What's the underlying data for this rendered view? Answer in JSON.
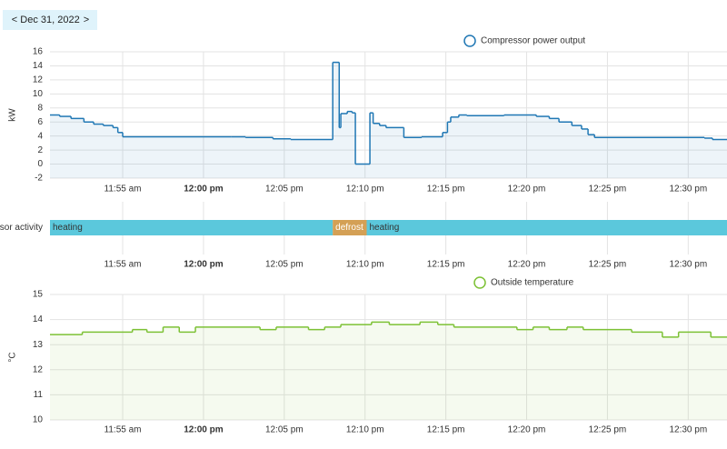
{
  "nav": {
    "prev": "<",
    "date": "Dec 31, 2022",
    "next": ">"
  },
  "chart_data": [
    {
      "type": "step-line",
      "y_label": "kW",
      "series": [
        {
          "name": "Compressor power output",
          "color": "#1f77b4",
          "x": [
            710.5,
            711.1,
            711.8,
            712.6,
            713.2,
            713.8,
            714.4,
            714.7,
            715.0,
            721.7,
            722.6,
            724.3,
            725.4,
            728.0,
            728.4,
            728.5,
            728.9,
            729.2,
            729.4,
            730.3,
            730.5,
            730.9,
            731.3,
            732.4,
            733.5,
            734.8,
            735.1,
            735.3,
            735.8,
            736.3,
            738.6,
            740.6,
            741.4,
            742.0,
            742.8,
            743.4,
            743.8,
            744.2,
            751.0,
            751.5
          ],
          "values": [
            7.0,
            6.8,
            6.5,
            6.0,
            5.7,
            5.5,
            5.2,
            4.5,
            3.9,
            3.9,
            3.8,
            3.6,
            3.5,
            14.5,
            5.2,
            7.2,
            7.5,
            7.3,
            0,
            7.3,
            5.8,
            5.5,
            5.2,
            3.8,
            3.9,
            4.5,
            6.0,
            6.7,
            7.0,
            6.9,
            7.0,
            6.8,
            6.5,
            6.0,
            5.5,
            5.0,
            4.2,
            3.8,
            3.7,
            3.5
          ]
        }
      ],
      "xlim": [
        710.5,
        752.4
      ],
      "xticks": [
        {
          "value": 715,
          "label": "11:55 am"
        },
        {
          "value": 720,
          "label": "12:00 pm"
        },
        {
          "value": 725,
          "label": "12:05 pm"
        },
        {
          "value": 730,
          "label": "12:10 pm"
        },
        {
          "value": 735,
          "label": "12:15 pm"
        },
        {
          "value": 740,
          "label": "12:20 pm"
        },
        {
          "value": 745,
          "label": "12:25 pm"
        },
        {
          "value": 750,
          "label": "12:30 pm"
        }
      ],
      "ylim": [
        -2,
        16
      ],
      "yticks": [
        -2,
        0,
        2,
        4,
        6,
        8,
        10,
        12,
        14,
        16
      ],
      "grid": true
    },
    {
      "type": "timeline",
      "row_label": "Compressor activity",
      "segments": [
        {
          "label": "heating",
          "start": 710.5,
          "end": 728.0,
          "color": "#5bc8dc"
        },
        {
          "label": "defrost",
          "start": 728.0,
          "end": 730.1,
          "color": "#d4a055"
        },
        {
          "label": "heating",
          "start": 730.1,
          "end": 752.4,
          "color": "#5bc8dc"
        }
      ],
      "xlim": [
        710.5,
        752.4
      ],
      "xticks": [
        {
          "value": 715,
          "label": "11:55 am"
        },
        {
          "value": 720,
          "label": "12:00 pm"
        },
        {
          "value": 725,
          "label": "12:05 pm"
        },
        {
          "value": 730,
          "label": "12:10 pm"
        },
        {
          "value": 735,
          "label": "12:15 pm"
        },
        {
          "value": 740,
          "label": "12:20 pm"
        },
        {
          "value": 745,
          "label": "12:25 pm"
        },
        {
          "value": 750,
          "label": "12:30 pm"
        }
      ],
      "grid": true
    },
    {
      "type": "step-line",
      "y_label": "°C",
      "series": [
        {
          "name": "Outside temperature",
          "color": "#7cc134",
          "x": [
            710.5,
            712.5,
            715.6,
            716.5,
            717.5,
            718.5,
            719.5,
            723.5,
            724.5,
            726.5,
            727.5,
            728.5,
            730.4,
            731.5,
            733.4,
            734.5,
            735.5,
            739.4,
            740.4,
            741.4,
            742.5,
            743.5,
            746.5,
            748.4,
            749.4,
            751.4
          ],
          "values": [
            13.4,
            13.5,
            13.6,
            13.5,
            13.7,
            13.5,
            13.7,
            13.6,
            13.7,
            13.6,
            13.7,
            13.8,
            13.9,
            13.8,
            13.9,
            13.8,
            13.7,
            13.6,
            13.7,
            13.6,
            13.7,
            13.6,
            13.5,
            13.3,
            13.5,
            13.3
          ]
        }
      ],
      "xlim": [
        710.5,
        752.4
      ],
      "xticks": [
        {
          "value": 715,
          "label": "11:55 am"
        },
        {
          "value": 720,
          "label": "12:00 pm"
        },
        {
          "value": 725,
          "label": "12:05 pm"
        },
        {
          "value": 730,
          "label": "12:10 pm"
        },
        {
          "value": 735,
          "label": "12:15 pm"
        },
        {
          "value": 740,
          "label": "12:20 pm"
        },
        {
          "value": 745,
          "label": "12:25 pm"
        },
        {
          "value": 750,
          "label": "12:30 pm"
        }
      ],
      "ylim": [
        10,
        15
      ],
      "yticks": [
        10,
        11,
        12,
        13,
        14,
        15
      ],
      "grid": true
    }
  ]
}
